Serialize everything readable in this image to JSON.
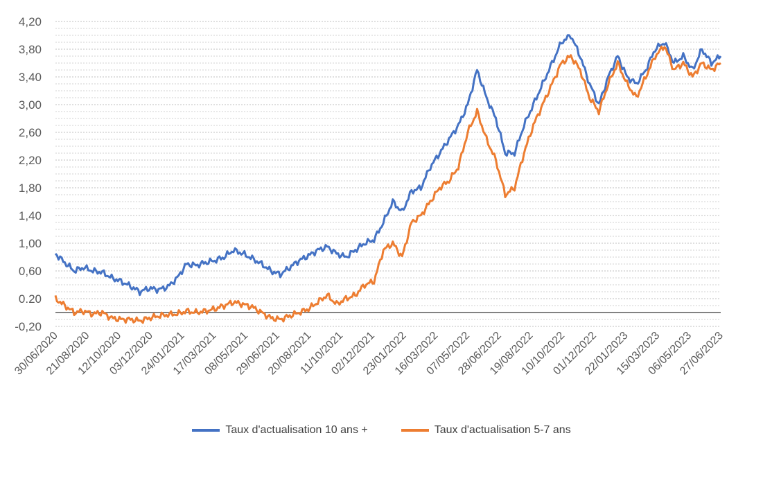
{
  "chart_data": {
    "type": "line",
    "title": "",
    "xlabel": "",
    "ylabel": "",
    "ylim": [
      -0.2,
      4.2
    ],
    "yticks": [
      "4,20",
      "3,80",
      "3,40",
      "3,00",
      "2,60",
      "2,20",
      "1,80",
      "1,40",
      "1,00",
      "0,60",
      "0.20",
      "-0,20"
    ],
    "ytick_values": [
      4.2,
      3.8,
      3.4,
      3.0,
      2.6,
      2.2,
      1.8,
      1.4,
      1.0,
      0.6,
      0.2,
      -0.2
    ],
    "xticks": [
      "30/06/2020",
      "21/08/2020",
      "12/10/2020",
      "03/12/2020",
      "24/01/2021",
      "17/03/2021",
      "08/05/2021",
      "29/06/2021",
      "20/08/2021",
      "11/10/2021",
      "02/12/2021",
      "23/01/2022",
      "16/03/2022",
      "07/05/2022",
      "28/06/2022",
      "19/08/2022",
      "10/10/2022",
      "01/12/2022",
      "22/01/2023",
      "15/03/2023",
      "06/05/2023",
      "27/06/2023"
    ],
    "grid": true,
    "legend_position": "bottom",
    "series": [
      {
        "name": "Taux d'actualisation 10 ans +",
        "color": "#4472C4",
        "values": [
          0.85,
          0.72,
          0.6,
          0.65,
          0.6,
          0.58,
          0.5,
          0.45,
          0.38,
          0.3,
          0.35,
          0.33,
          0.37,
          0.5,
          0.7,
          0.68,
          0.72,
          0.75,
          0.8,
          0.9,
          0.85,
          0.78,
          0.7,
          0.6,
          0.55,
          0.65,
          0.75,
          0.82,
          0.9,
          0.95,
          0.85,
          0.8,
          0.9,
          1.0,
          1.05,
          1.3,
          1.6,
          1.45,
          1.75,
          1.8,
          2.1,
          2.3,
          2.5,
          2.7,
          3.0,
          3.5,
          3.1,
          2.8,
          2.3,
          2.3,
          2.7,
          3.0,
          3.3,
          3.6,
          3.9,
          4.0,
          3.7,
          3.3,
          3.0,
          3.4,
          3.7,
          3.4,
          3.3,
          3.5,
          3.8,
          3.9,
          3.6,
          3.7,
          3.5,
          3.8,
          3.6,
          3.7
        ]
      },
      {
        "name": "Taux d'actualisation 5-7 ans",
        "color": "#ED7D31",
        "values": [
          0.2,
          0.1,
          0.0,
          0.02,
          -0.02,
          0.0,
          -0.08,
          -0.1,
          -0.1,
          -0.12,
          -0.08,
          -0.05,
          -0.03,
          -0.02,
          0.02,
          0.0,
          0.02,
          0.05,
          0.1,
          0.15,
          0.12,
          0.08,
          0.0,
          -0.08,
          -0.1,
          -0.05,
          0.0,
          0.05,
          0.15,
          0.25,
          0.12,
          0.2,
          0.25,
          0.4,
          0.45,
          0.9,
          1.0,
          0.8,
          1.3,
          1.4,
          1.6,
          1.8,
          1.9,
          2.1,
          2.6,
          2.9,
          2.5,
          2.2,
          1.7,
          1.8,
          2.3,
          2.7,
          3.0,
          3.3,
          3.6,
          3.7,
          3.5,
          3.1,
          2.9,
          3.3,
          3.6,
          3.3,
          3.1,
          3.4,
          3.7,
          3.85,
          3.5,
          3.6,
          3.4,
          3.6,
          3.5,
          3.6
        ]
      }
    ]
  }
}
